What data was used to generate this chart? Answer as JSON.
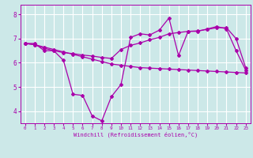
{
  "xlabel": "Windchill (Refroidissement éolien,°C)",
  "background_color": "#cce8e8",
  "grid_color": "#ffffff",
  "line_color": "#aa00aa",
  "xlim": [
    -0.5,
    23.5
  ],
  "ylim": [
    3.5,
    8.4
  ],
  "yticks": [
    4,
    5,
    6,
    7,
    8
  ],
  "xticks": [
    0,
    1,
    2,
    3,
    4,
    5,
    6,
    7,
    8,
    9,
    10,
    11,
    12,
    13,
    14,
    15,
    16,
    17,
    18,
    19,
    20,
    21,
    22,
    23
  ],
  "line1_x": [
    0,
    1,
    2,
    3,
    4,
    5,
    6,
    7,
    8,
    9,
    10,
    11,
    12,
    13,
    14,
    15,
    16,
    17,
    18,
    19,
    20,
    21,
    22,
    23
  ],
  "line1_y": [
    6.8,
    6.8,
    6.5,
    6.5,
    6.1,
    4.7,
    4.65,
    3.8,
    3.6,
    4.6,
    5.1,
    7.05,
    7.2,
    7.15,
    7.35,
    7.85,
    6.3,
    7.3,
    7.3,
    7.4,
    7.5,
    7.4,
    6.5,
    5.7
  ],
  "line2_x": [
    0,
    1,
    2,
    3,
    4,
    5,
    6,
    7,
    8,
    9,
    10,
    11,
    12,
    13,
    14,
    15,
    16,
    17,
    18,
    19,
    20,
    21,
    22,
    23
  ],
  "line2_y": [
    6.8,
    6.75,
    6.6,
    6.5,
    6.42,
    6.38,
    6.32,
    6.28,
    6.22,
    6.18,
    6.55,
    6.72,
    6.82,
    6.95,
    7.05,
    7.2,
    7.25,
    7.3,
    7.32,
    7.38,
    7.45,
    7.45,
    7.0,
    5.8
  ],
  "line3_x": [
    0,
    1,
    2,
    3,
    4,
    5,
    6,
    7,
    8,
    9,
    10,
    11,
    12,
    13,
    14,
    15,
    16,
    17,
    18,
    19,
    20,
    21,
    22,
    23
  ],
  "line3_y": [
    6.8,
    6.75,
    6.65,
    6.55,
    6.45,
    6.35,
    6.25,
    6.15,
    6.05,
    5.95,
    5.9,
    5.85,
    5.8,
    5.78,
    5.76,
    5.74,
    5.72,
    5.7,
    5.68,
    5.66,
    5.64,
    5.62,
    5.6,
    5.58
  ]
}
